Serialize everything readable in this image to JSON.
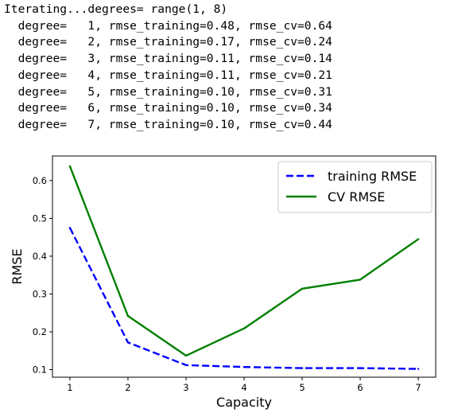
{
  "console": {
    "header": "Iterating...degrees= range(1, 8)",
    "lines": [
      "  degree=   1, rmse_training=0.48, rmse_cv=0.64",
      "  degree=   2, rmse_training=0.17, rmse_cv=0.24",
      "  degree=   3, rmse_training=0.11, rmse_cv=0.14",
      "  degree=   4, rmse_training=0.11, rmse_cv=0.21",
      "  degree=   5, rmse_training=0.10, rmse_cv=0.31",
      "  degree=   6, rmse_training=0.10, rmse_cv=0.34",
      "  degree=   7, rmse_training=0.10, rmse_cv=0.44"
    ]
  },
  "chart_data": {
    "type": "line",
    "title": "",
    "xlabel": "Capacity",
    "ylabel": "RMSE",
    "x": [
      1,
      2,
      3,
      4,
      5,
      6,
      7
    ],
    "xticks": [
      "1",
      "2",
      "3",
      "4",
      "5",
      "6",
      "7"
    ],
    "yticks": [
      "0.1",
      "0.2",
      "0.3",
      "0.4",
      "0.5",
      "0.6"
    ],
    "xlim": [
      0.7,
      7.3
    ],
    "ylim": [
      0.08,
      0.665
    ],
    "grid": false,
    "legend_position": "top-right",
    "series": [
      {
        "name": "training RMSE",
        "values": [
          0.475,
          0.172,
          0.112,
          0.107,
          0.104,
          0.104,
          0.102
        ],
        "color": "#0000ff",
        "style": "dashed"
      },
      {
        "name": "CV RMSE",
        "values": [
          0.638,
          0.242,
          0.137,
          0.209,
          0.314,
          0.338,
          0.445
        ],
        "color": "#008000",
        "style": "solid"
      }
    ]
  }
}
